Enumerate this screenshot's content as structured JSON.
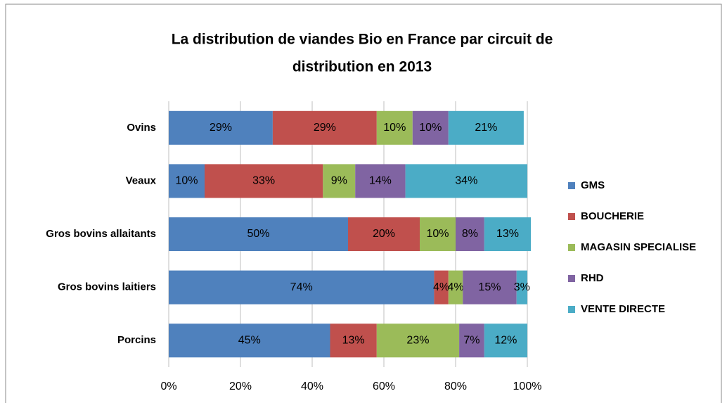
{
  "chart_data": {
    "type": "stacked_bar_horizontal",
    "title": [
      "La distribution de viandes Bio en France par circuit de",
      "distribution en 2013"
    ],
    "categories": [
      "Ovins",
      "Veaux",
      "Gros bovins allaitants",
      "Gros bovins laitiers",
      "Porcins"
    ],
    "series": [
      {
        "name": "GMS",
        "color": "#4f81bd",
        "values": [
          29,
          10,
          50,
          74,
          45
        ],
        "value_labels": [
          "29%",
          "10%",
          "50%",
          "74%",
          "45%"
        ]
      },
      {
        "name": "BOUCHERIE",
        "color": "#c0504d",
        "values": [
          29,
          33,
          20,
          4,
          13
        ],
        "value_labels": [
          "29%",
          "33%",
          "20%",
          "4%",
          "13%"
        ]
      },
      {
        "name": "MAGASIN SPECIALISE",
        "color": "#9bbb59",
        "values": [
          10,
          9,
          10,
          4,
          23
        ],
        "value_labels": [
          "10%",
          "9%",
          "10%",
          "4%",
          "23%"
        ]
      },
      {
        "name": "RHD",
        "color": "#8064a2",
        "values": [
          10,
          14,
          8,
          15,
          7
        ],
        "value_labels": [
          "10%",
          "14%",
          "8%",
          "15%",
          "7%"
        ]
      },
      {
        "name": "VENTE DIRECTE",
        "color": "#4bacc6",
        "values": [
          21,
          34,
          13,
          3,
          12
        ],
        "value_labels": [
          "21%",
          "34%",
          "13%",
          "3%",
          "12%"
        ]
      }
    ],
    "xlim": [
      0,
      100
    ],
    "xticks": [
      {
        "value": 0,
        "label": "0%"
      },
      {
        "value": 20,
        "label": "20%"
      },
      {
        "value": 40,
        "label": "40%"
      },
      {
        "value": 60,
        "label": "60%"
      },
      {
        "value": 80,
        "label": "80%"
      },
      {
        "value": 100,
        "label": "100%"
      }
    ],
    "grid": true,
    "legend": "right"
  }
}
